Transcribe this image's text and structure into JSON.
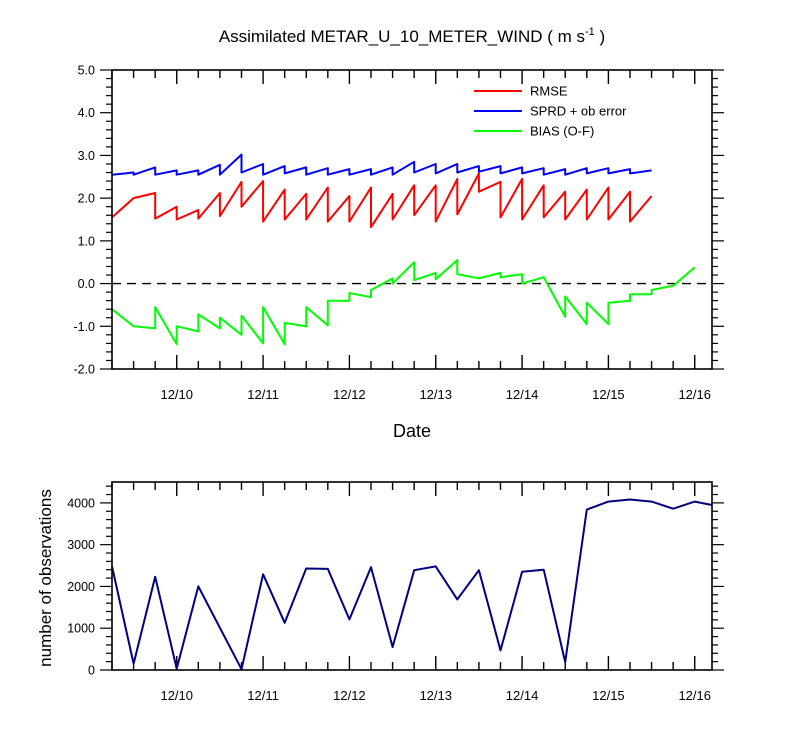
{
  "title": {
    "main": "Assimilated METAR_U_10_METER_WIND ( m s",
    "sup": "-1",
    "tail": " )"
  },
  "chart_data": [
    {
      "type": "line",
      "id": "top",
      "x_min": 0,
      "x_max": 6.95,
      "x_ticks": [
        0.75,
        1.75,
        2.75,
        3.75,
        4.75,
        5.75,
        6.75
      ],
      "x_tick_labels": [
        "12/10",
        "12/11",
        "12/12",
        "12/13",
        "12/14",
        "12/15",
        "12/16"
      ],
      "xlabel": "Date",
      "ylim": [
        -2,
        5
      ],
      "y_ticks": [
        -2,
        -1,
        0,
        1,
        2,
        3,
        4,
        5
      ],
      "y_tick_labels": [
        "-2.0",
        "-1.0",
        "0.0",
        "1.0",
        "2.0",
        "3.0",
        "4.0",
        "5.0"
      ],
      "zero_line": 0,
      "legend_position": "top-right",
      "series": [
        {
          "name": "RMSE",
          "color": "#ff0000",
          "points": [
            [
              0,
              1.55
            ],
            [
              0.25,
              2.0
            ],
            [
              0.5,
              2.12
            ],
            [
              0.5,
              1.52
            ],
            [
              0.75,
              1.8
            ],
            [
              0.75,
              1.5
            ],
            [
              1.0,
              1.72
            ],
            [
              1.0,
              1.52
            ],
            [
              1.25,
              2.12
            ],
            [
              1.25,
              1.58
            ],
            [
              1.5,
              2.38
            ],
            [
              1.5,
              1.8
            ],
            [
              1.75,
              2.4
            ],
            [
              1.75,
              1.45
            ],
            [
              2.0,
              2.2
            ],
            [
              2.0,
              1.5
            ],
            [
              2.25,
              2.1
            ],
            [
              2.25,
              1.5
            ],
            [
              2.5,
              2.25
            ],
            [
              2.5,
              1.45
            ],
            [
              2.75,
              2.05
            ],
            [
              2.75,
              1.45
            ],
            [
              3.0,
              2.25
            ],
            [
              3.0,
              1.32
            ],
            [
              3.25,
              2.1
            ],
            [
              3.25,
              1.5
            ],
            [
              3.5,
              2.3
            ],
            [
              3.5,
              1.6
            ],
            [
              3.75,
              2.3
            ],
            [
              3.75,
              1.45
            ],
            [
              4.0,
              2.45
            ],
            [
              4.0,
              1.62
            ],
            [
              4.25,
              2.58
            ],
            [
              4.25,
              2.15
            ],
            [
              4.5,
              2.38
            ],
            [
              4.5,
              1.55
            ],
            [
              4.75,
              2.45
            ],
            [
              4.75,
              1.5
            ],
            [
              5.0,
              2.3
            ],
            [
              5.0,
              1.55
            ],
            [
              5.25,
              2.15
            ],
            [
              5.25,
              1.5
            ],
            [
              5.5,
              2.2
            ],
            [
              5.5,
              1.5
            ],
            [
              5.75,
              2.25
            ],
            [
              5.75,
              1.5
            ],
            [
              6.0,
              2.15
            ],
            [
              6.0,
              1.45
            ],
            [
              6.25,
              2.05
            ]
          ]
        },
        {
          "name": "SPRD + ob error",
          "color": "#0000ff",
          "points": [
            [
              0,
              2.55
            ],
            [
              0.25,
              2.6
            ],
            [
              0.25,
              2.55
            ],
            [
              0.5,
              2.72
            ],
            [
              0.5,
              2.55
            ],
            [
              0.75,
              2.65
            ],
            [
              0.75,
              2.55
            ],
            [
              1.0,
              2.65
            ],
            [
              1.0,
              2.55
            ],
            [
              1.25,
              2.78
            ],
            [
              1.25,
              2.55
            ],
            [
              1.5,
              3.02
            ],
            [
              1.5,
              2.6
            ],
            [
              1.75,
              2.8
            ],
            [
              1.75,
              2.55
            ],
            [
              2.0,
              2.75
            ],
            [
              2.0,
              2.58
            ],
            [
              2.25,
              2.72
            ],
            [
              2.25,
              2.55
            ],
            [
              2.5,
              2.7
            ],
            [
              2.5,
              2.55
            ],
            [
              2.75,
              2.68
            ],
            [
              2.75,
              2.55
            ],
            [
              3.0,
              2.68
            ],
            [
              3.0,
              2.55
            ],
            [
              3.25,
              2.72
            ],
            [
              3.25,
              2.55
            ],
            [
              3.5,
              2.85
            ],
            [
              3.5,
              2.6
            ],
            [
              3.75,
              2.8
            ],
            [
              3.75,
              2.58
            ],
            [
              4.0,
              2.8
            ],
            [
              4.0,
              2.6
            ],
            [
              4.25,
              2.75
            ],
            [
              4.25,
              2.62
            ],
            [
              4.5,
              2.75
            ],
            [
              4.5,
              2.58
            ],
            [
              4.75,
              2.72
            ],
            [
              4.75,
              2.58
            ],
            [
              5.0,
              2.7
            ],
            [
              5.0,
              2.55
            ],
            [
              5.25,
              2.68
            ],
            [
              5.25,
              2.55
            ],
            [
              5.5,
              2.7
            ],
            [
              5.5,
              2.58
            ],
            [
              5.75,
              2.7
            ],
            [
              5.75,
              2.58
            ],
            [
              6.0,
              2.68
            ],
            [
              6.0,
              2.58
            ],
            [
              6.25,
              2.65
            ]
          ]
        },
        {
          "name": "BIAS (O-F)",
          "color": "#00ff00",
          "points": [
            [
              0,
              -0.6
            ],
            [
              0.25,
              -1.0
            ],
            [
              0.5,
              -1.05
            ],
            [
              0.5,
              -0.55
            ],
            [
              0.75,
              -1.42
            ],
            [
              0.75,
              -1.0
            ],
            [
              1.0,
              -1.12
            ],
            [
              1.0,
              -0.72
            ],
            [
              1.25,
              -1.05
            ],
            [
              1.25,
              -0.8
            ],
            [
              1.5,
              -1.2
            ],
            [
              1.5,
              -0.75
            ],
            [
              1.75,
              -1.4
            ],
            [
              1.75,
              -0.55
            ],
            [
              2.0,
              -1.42
            ],
            [
              2.0,
              -0.92
            ],
            [
              2.25,
              -1.0
            ],
            [
              2.25,
              -0.55
            ],
            [
              2.5,
              -0.98
            ],
            [
              2.5,
              -0.4
            ],
            [
              2.75,
              -0.4
            ],
            [
              2.75,
              -0.22
            ],
            [
              3.0,
              -0.32
            ],
            [
              3.0,
              -0.15
            ],
            [
              3.25,
              0.12
            ],
            [
              3.25,
              0.0
            ],
            [
              3.5,
              0.5
            ],
            [
              3.5,
              0.08
            ],
            [
              3.75,
              0.25
            ],
            [
              3.75,
              0.1
            ],
            [
              4.0,
              0.55
            ],
            [
              4.0,
              0.22
            ],
            [
              4.25,
              0.12
            ],
            [
              4.5,
              0.25
            ],
            [
              4.5,
              0.15
            ],
            [
              4.75,
              0.22
            ],
            [
              4.75,
              0.0
            ],
            [
              5.0,
              0.15
            ],
            [
              5.25,
              -0.78
            ],
            [
              5.25,
              -0.3
            ],
            [
              5.5,
              -0.95
            ],
            [
              5.5,
              -0.45
            ],
            [
              5.75,
              -0.95
            ],
            [
              5.75,
              -0.45
            ],
            [
              6.0,
              -0.4
            ],
            [
              6.0,
              -0.25
            ],
            [
              6.25,
              -0.25
            ],
            [
              6.25,
              -0.15
            ],
            [
              6.5,
              -0.05
            ],
            [
              6.75,
              0.38
            ]
          ]
        }
      ]
    },
    {
      "type": "line",
      "id": "bottom",
      "x_min": 0,
      "x_max": 6.95,
      "x_ticks": [
        0.75,
        1.75,
        2.75,
        3.75,
        4.75,
        5.75,
        6.75
      ],
      "x_tick_labels": [
        "12/10",
        "12/11",
        "12/12",
        "12/13",
        "12/14",
        "12/15",
        "12/16"
      ],
      "ylabel": "number of observations",
      "ylim": [
        0,
        4500
      ],
      "y_ticks": [
        0,
        1000,
        2000,
        3000,
        4000
      ],
      "y_tick_labels": [
        "0",
        "1000",
        "2000",
        "3000",
        "4000"
      ],
      "series": [
        {
          "name": "number of observations",
          "color": "#000080",
          "points": [
            [
              0,
              2480
            ],
            [
              0.25,
              150
            ],
            [
              0.5,
              2230
            ],
            [
              0.75,
              30
            ],
            [
              1.0,
              2000
            ],
            [
              1.5,
              20
            ],
            [
              1.75,
              2290
            ],
            [
              2.0,
              1130
            ],
            [
              2.25,
              2430
            ],
            [
              2.5,
              2420
            ],
            [
              2.75,
              1210
            ],
            [
              3.0,
              2460
            ],
            [
              3.25,
              550
            ],
            [
              3.5,
              2390
            ],
            [
              3.75,
              2480
            ],
            [
              4.0,
              1690
            ],
            [
              4.25,
              2390
            ],
            [
              4.5,
              470
            ],
            [
              4.75,
              2350
            ],
            [
              5.0,
              2400
            ],
            [
              5.25,
              190
            ],
            [
              5.5,
              3840
            ],
            [
              5.75,
              4030
            ],
            [
              6.0,
              4080
            ],
            [
              6.25,
              4030
            ],
            [
              6.5,
              3860
            ],
            [
              6.75,
              4030
            ],
            [
              6.95,
              3950
            ]
          ]
        }
      ]
    }
  ]
}
